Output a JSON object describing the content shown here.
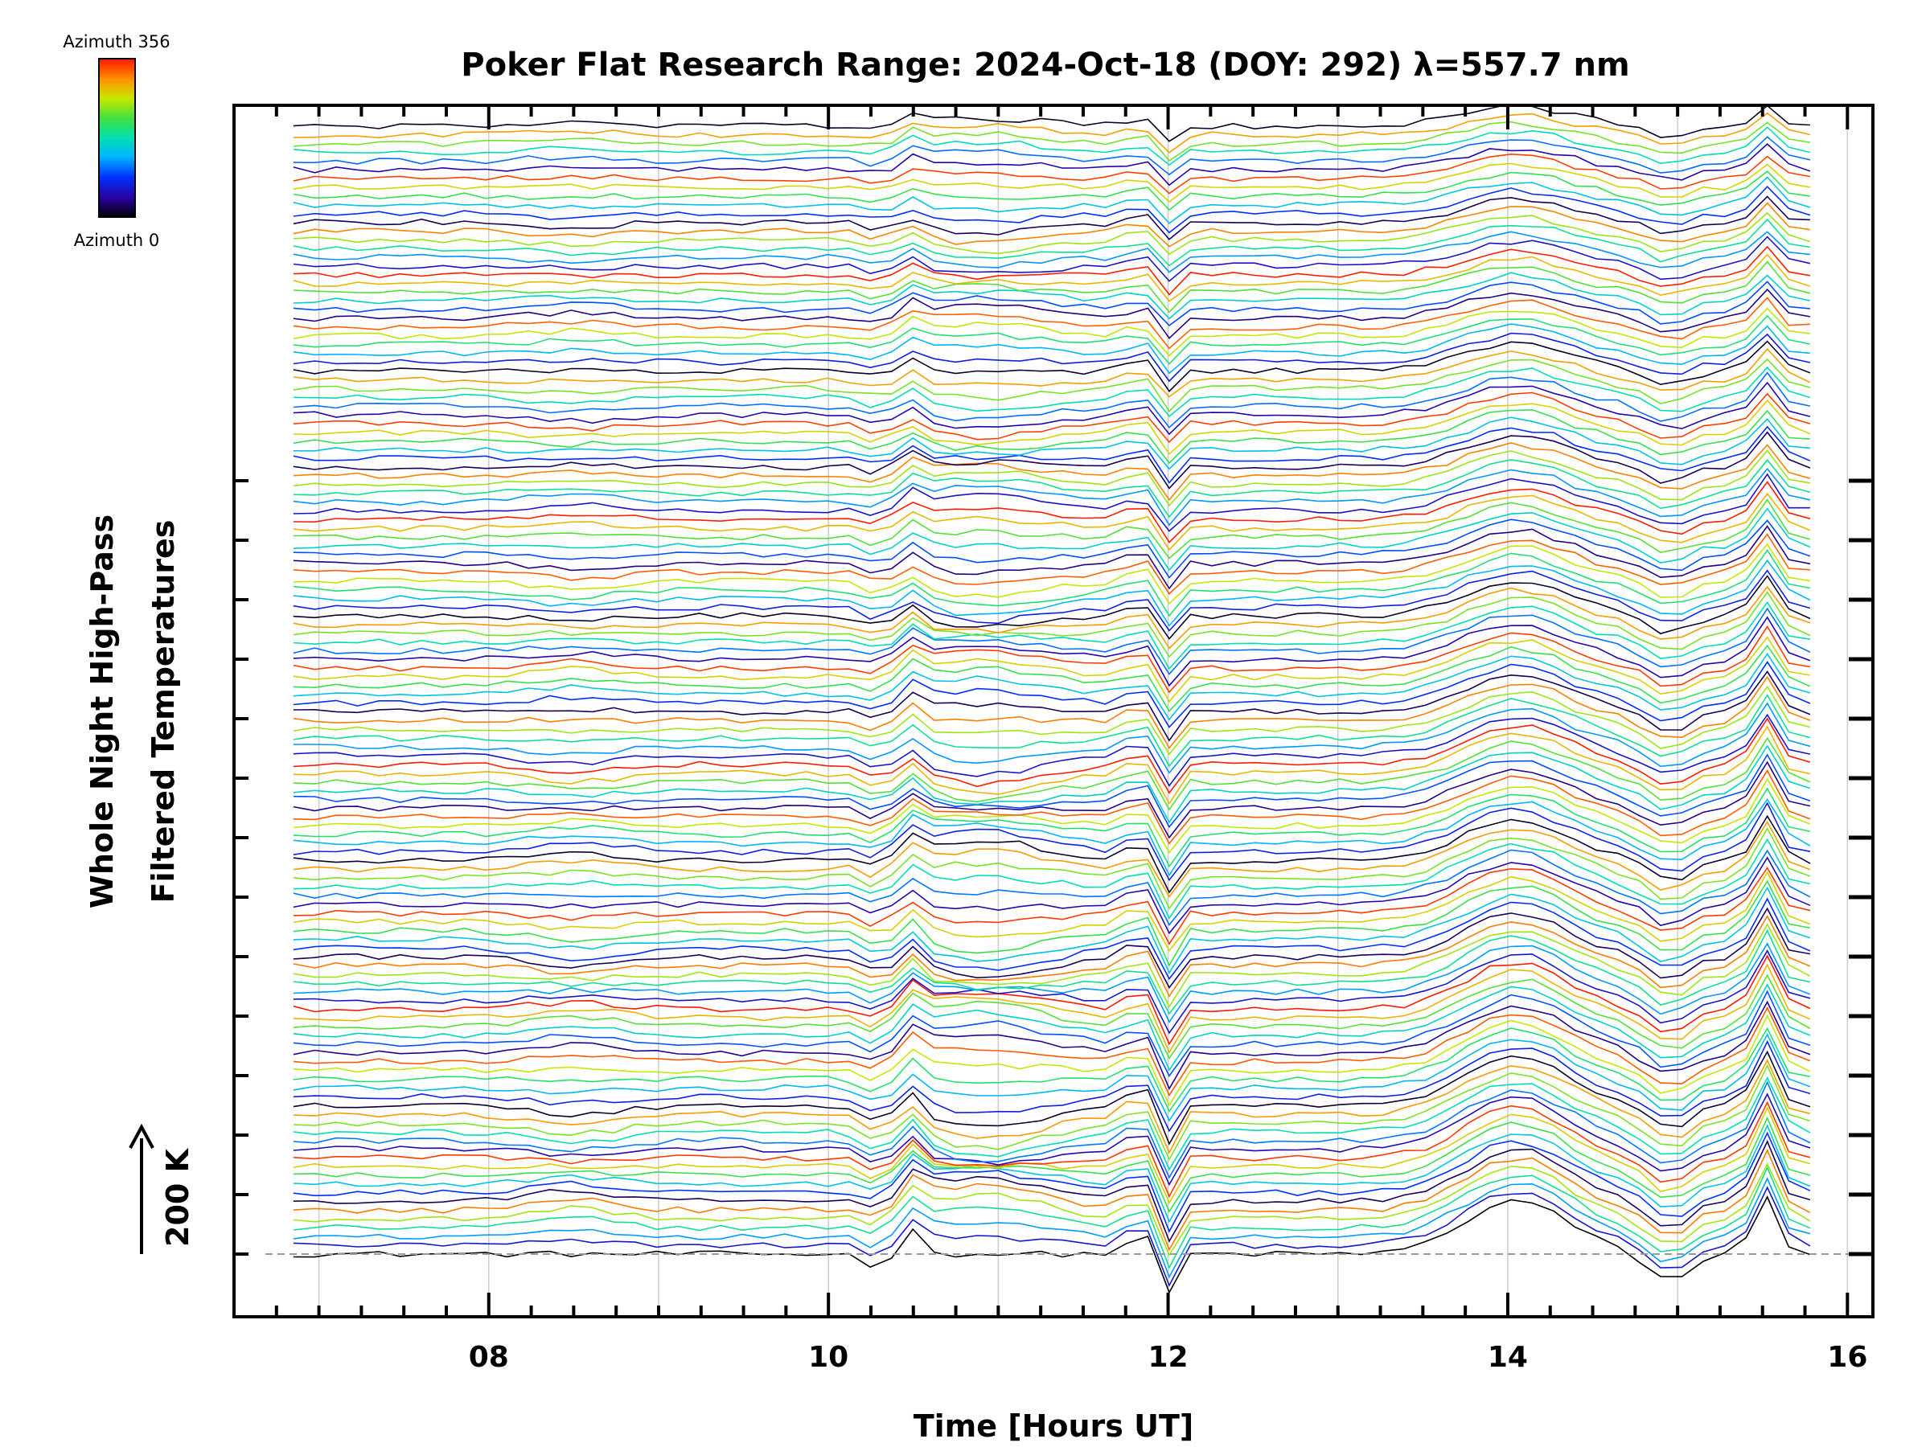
{
  "chart_data": {
    "type": "line",
    "title": "Poker Flat Research Range: 2024-Oct-18 (DOY: 292) λ=557.7 nm",
    "xlabel": "Time [Hours UT]",
    "ylabel_line1": "Whole Night High-Pass",
    "ylabel_line2": "Filtered Temperatures",
    "scale_label": "200 K",
    "scale_value_K": 200,
    "xlim": [
      6.5,
      16.15
    ],
    "x_ticks": [
      8,
      10,
      12,
      14,
      16
    ],
    "x_tick_labels": [
      "08",
      "10",
      "12",
      "14",
      "16"
    ],
    "grid": "vertical-dotted",
    "colorbar": {
      "top_label": "Azimuth 356",
      "bottom_label": "Azimuth 0",
      "min": 0,
      "max": 356,
      "colormap": "rainbow"
    },
    "time_start_h": 6.85,
    "time_end_h": 15.78,
    "n_traces": 130,
    "trace_spacing_K": 14.7,
    "trace_start": "bottom",
    "colors": {
      "frame": "#000000",
      "grid": "#cccccc",
      "baseline": "#999999"
    }
  }
}
